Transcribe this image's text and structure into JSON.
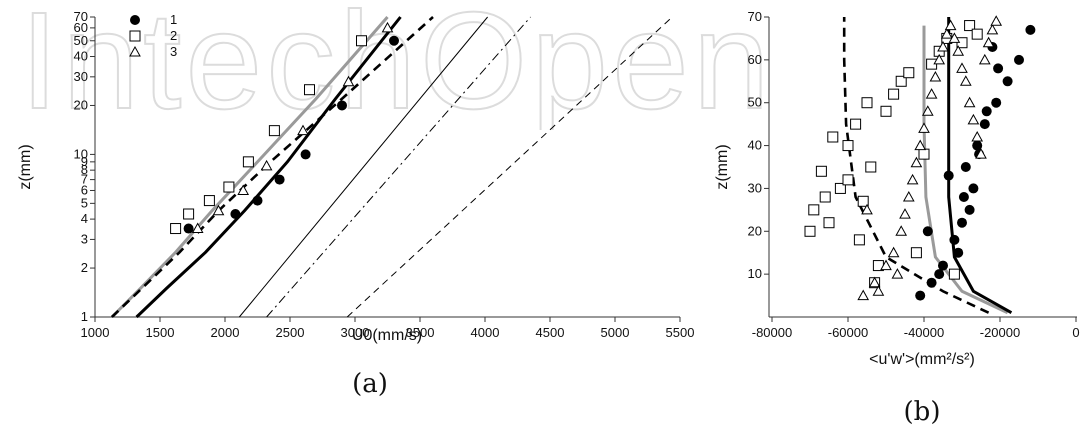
{
  "watermark": "IntechOpen",
  "chart_data": [
    {
      "type": "scatter",
      "caption": "(a)",
      "xlabel": "U0(mm/s)",
      "ylabel": "z(mm)",
      "xlim": [
        1000,
        5500
      ],
      "ylim": [
        1,
        70
      ],
      "yscale": "log",
      "grid": false,
      "legend_position": "top-left",
      "x_ticks": [
        1000,
        1500,
        2000,
        2500,
        3000,
        3500,
        4000,
        4500,
        5000,
        5500
      ],
      "y_ticks": [
        1,
        2,
        3,
        4,
        5,
        6,
        7,
        8,
        9,
        10,
        20,
        30,
        40,
        50,
        60,
        70
      ],
      "series": [
        {
          "name": "1",
          "marker": "filled-circle",
          "x": [
            1720,
            2080,
            2250,
            2420,
            2620,
            2900,
            3300
          ],
          "y": [
            3.5,
            4.3,
            5.2,
            7,
            10,
            20,
            50
          ]
        },
        {
          "name": "2",
          "marker": "open-square",
          "x": [
            1620,
            1720,
            1880,
            2030,
            2180,
            2380,
            2650,
            3050
          ],
          "y": [
            3.5,
            4.3,
            5.2,
            6.3,
            9,
            14,
            25,
            50
          ]
        },
        {
          "name": "3",
          "marker": "open-triangle",
          "x": [
            1790,
            1950,
            2140,
            2320,
            2600,
            2950,
            3250
          ],
          "y": [
            3.5,
            4.5,
            6,
            8.5,
            14,
            28,
            60
          ]
        }
      ],
      "lines": [
        {
          "style": "solid-thick-black",
          "x": [
            1320,
            1550,
            1850,
            2150,
            2480,
            2850,
            3350
          ],
          "y": [
            1,
            1.5,
            2.5,
            4.5,
            9,
            22,
            70
          ]
        },
        {
          "style": "solid-thick-gray",
          "x": [
            1130,
            1350,
            1620,
            1900,
            2250,
            2700,
            3250
          ],
          "y": [
            1,
            1.5,
            2.5,
            4.5,
            9,
            22,
            70
          ]
        },
        {
          "style": "dashed-thick-black",
          "x": [
            1130,
            1360,
            1650,
            1950,
            2350,
            2900,
            3600
          ],
          "y": [
            1,
            1.5,
            2.5,
            4.5,
            9,
            22,
            70
          ]
        },
        {
          "style": "solid-thin",
          "x": [
            2110,
            4020
          ],
          "y": [
            1,
            70
          ]
        },
        {
          "style": "dashdot-thin",
          "x": [
            2320,
            4350
          ],
          "y": [
            1,
            70
          ]
        },
        {
          "style": "dashed-thin",
          "x": [
            2940,
            5440
          ],
          "y": [
            1,
            70
          ]
        }
      ]
    },
    {
      "type": "scatter",
      "caption": "(b)",
      "xlabel": "<u'w'>(mm²/s²)",
      "ylabel": "z(mm)",
      "xlim": [
        -80000,
        0
      ],
      "ylim": [
        0,
        70
      ],
      "grid": false,
      "x_ticks": [
        -80000,
        -60000,
        -40000,
        -20000,
        0
      ],
      "y_ticks": [
        10,
        20,
        30,
        40,
        50,
        60,
        70
      ],
      "series": [
        {
          "marker": "filled-circle",
          "x": [
            -41000,
            -38000,
            -35000,
            -32000,
            -30000,
            -28000,
            -27000,
            -29000,
            -26000,
            -24000,
            -21000,
            -18000,
            -15000,
            -12000,
            -36000,
            -31000,
            -29500,
            -25500,
            -23500,
            -20500,
            -39000,
            -33500,
            -22000
          ],
          "y": [
            5,
            8,
            12,
            18,
            22,
            25,
            30,
            35,
            40,
            45,
            50,
            55,
            60,
            67,
            10,
            15,
            28,
            38,
            48,
            58,
            20,
            33,
            63
          ]
        },
        {
          "marker": "open-square",
          "x": [
            -70000,
            -69000,
            -67000,
            -65000,
            -62000,
            -60000,
            -58000,
            -56000,
            -54000,
            -52000,
            -50000,
            -48000,
            -46000,
            -44000,
            -42000,
            -40000,
            -38000,
            -36000,
            -34000,
            -32000,
            -30000,
            -28000,
            -26000,
            -60000,
            -57000,
            -53000,
            -64000,
            -66000,
            -55000
          ],
          "y": [
            20,
            25,
            34,
            22,
            30,
            40,
            45,
            27,
            35,
            12,
            48,
            52,
            55,
            57,
            15,
            38,
            59,
            62,
            65,
            10,
            64,
            68,
            66,
            32,
            18,
            8,
            42,
            28,
            50
          ]
        },
        {
          "marker": "open-triangle",
          "x": [
            -56000,
            -53000,
            -50000,
            -48000,
            -46000,
            -45000,
            -44000,
            -43000,
            -42000,
            -41000,
            -40000,
            -39000,
            -38000,
            -37000,
            -36000,
            -35000,
            -34000,
            -33000,
            -32000,
            -31000,
            -30000,
            -29000,
            -28000,
            -27000,
            -26000,
            -25000,
            -24000,
            -23000,
            -22000,
            -21000,
            -47000,
            -52000,
            -55000
          ],
          "y": [
            5,
            8,
            12,
            15,
            20,
            24,
            28,
            32,
            36,
            40,
            44,
            48,
            52,
            56,
            60,
            63,
            66,
            68,
            65,
            62,
            58,
            55,
            50,
            46,
            42,
            38,
            60,
            64,
            67,
            69,
            10,
            6,
            25
          ]
        }
      ],
      "lines": [
        {
          "style": "dashed-thick-black",
          "x": [
            -23000,
            -35000,
            -50000,
            -58000,
            -60500,
            -61000,
            -61000
          ],
          "y": [
            1,
            6,
            14,
            28,
            45,
            60,
            70
          ]
        },
        {
          "style": "solid-thick-gray",
          "x": [
            -18000,
            -30000,
            -37000,
            -39500,
            -40000,
            -40000,
            -40000
          ],
          "y": [
            1,
            6,
            14,
            28,
            45,
            60,
            68
          ]
        },
        {
          "style": "solid-thick-black",
          "x": [
            -17000,
            -27000,
            -32000,
            -33500,
            -33500,
            -33500,
            -33500
          ],
          "y": [
            1,
            6,
            14,
            28,
            45,
            60,
            70
          ]
        }
      ]
    }
  ]
}
